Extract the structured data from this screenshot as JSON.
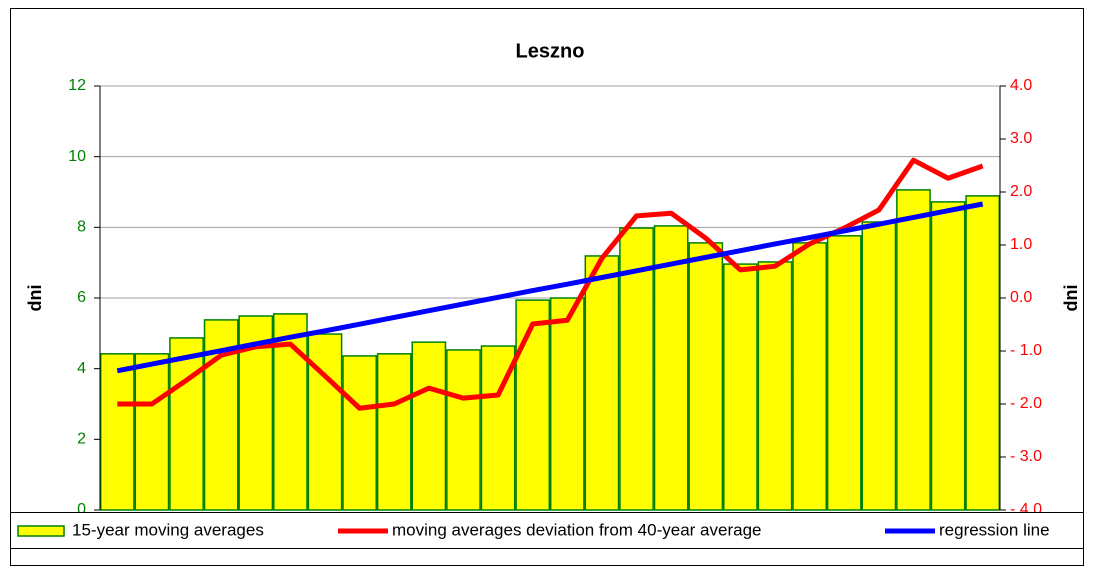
{
  "chart_data": {
    "type": "bar",
    "title": "Leszno",
    "y_label": "dni",
    "y2_label": "dni",
    "categories": [
      null,
      null,
      null,
      null,
      null,
      null,
      null,
      null,
      null,
      null,
      null,
      null,
      null,
      null,
      null,
      null,
      null,
      null,
      null,
      null,
      null,
      null,
      null,
      null,
      null,
      null
    ],
    "ylim": [
      0,
      12
    ],
    "yticks": [
      0,
      2,
      4,
      6,
      8,
      10,
      12
    ],
    "y2lim": [
      -4,
      4
    ],
    "y2ticks": [
      {
        "value": -4,
        "label": "- 4.0"
      },
      {
        "value": -3,
        "label": "- 3.0"
      },
      {
        "value": -2,
        "label": "- 2.0"
      },
      {
        "value": -1,
        "label": "- 1.0"
      },
      {
        "value": 0,
        "label": "0.0"
      },
      {
        "value": 1,
        "label": "1.0"
      },
      {
        "value": 2,
        "label": "2.0"
      },
      {
        "value": 3,
        "label": "3.0"
      },
      {
        "value": 4,
        "label": "4.0"
      }
    ],
    "grid": true,
    "legend": "bottom",
    "series": [
      {
        "name": "15-year moving averages",
        "type": "bar",
        "color": "#ffff00",
        "edge_color": "#008000",
        "values": [
          4.42,
          4.42,
          4.87,
          5.38,
          5.49,
          5.55,
          4.98,
          4.36,
          4.42,
          4.75,
          4.53,
          4.64,
          5.94,
          6.0,
          7.19,
          7.98,
          8.04,
          7.56,
          6.96,
          7.02,
          7.56,
          7.76,
          8.15,
          9.06,
          8.72,
          8.89
        ]
      },
      {
        "name": "moving averages deviation from 40-year average",
        "type": "line",
        "axis": "y2",
        "color": "#ff0000",
        "values": [
          -2.0,
          -2.0,
          -1.55,
          -1.08,
          -0.92,
          -0.87,
          -1.47,
          -2.08,
          -2.0,
          -1.7,
          -1.89,
          -1.83,
          -0.49,
          -0.42,
          0.75,
          1.55,
          1.6,
          1.13,
          0.53,
          0.6,
          1.02,
          1.32,
          1.66,
          2.6,
          2.26,
          2.49
        ]
      },
      {
        "name": "regression line",
        "type": "line",
        "color": "#0000ff",
        "values": [
          3.94,
          4.13,
          4.32,
          4.51,
          4.7,
          4.89,
          5.07,
          5.26,
          5.45,
          5.64,
          5.83,
          6.02,
          6.21,
          6.39,
          6.58,
          6.77,
          6.96,
          7.15,
          7.34,
          7.53,
          7.71,
          7.9,
          8.09,
          8.28,
          8.47,
          8.66
        ]
      }
    ]
  }
}
